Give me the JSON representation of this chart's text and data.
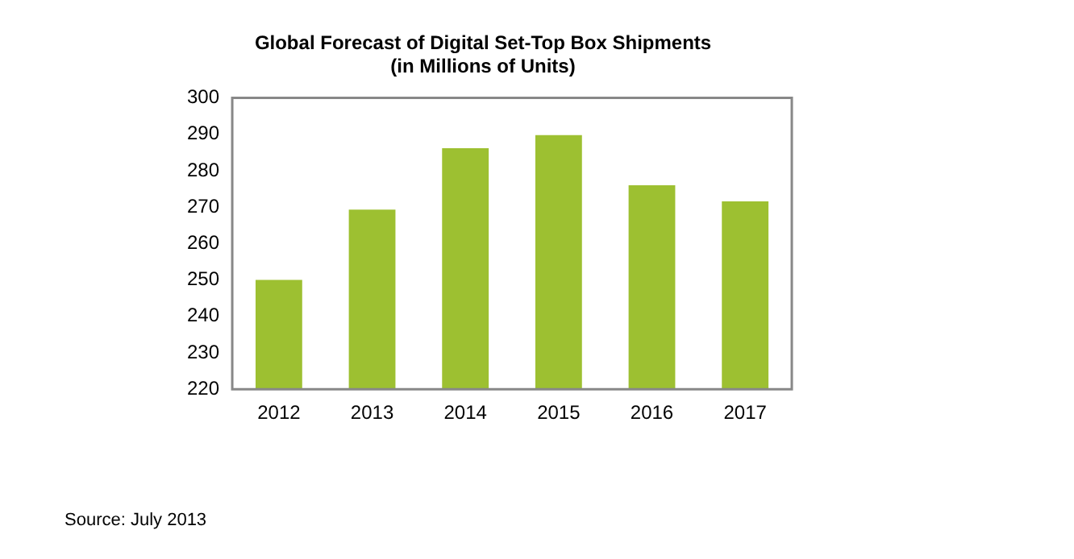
{
  "chart_data": {
    "type": "bar",
    "title": "Global Forecast of Digital Set-Top Box Shipments",
    "subtitle": "(in Millions of Units)",
    "categories": [
      "2012",
      "2013",
      "2014",
      "2015",
      "2016",
      "2017"
    ],
    "values": [
      250,
      269.3,
      286.2,
      289.8,
      276,
      271.6
    ],
    "color": "#9dc031",
    "ylim": [
      220,
      300
    ],
    "yticks": [
      220,
      230,
      240,
      250,
      260,
      270,
      280,
      290,
      300
    ],
    "grid": false,
    "legend": false,
    "annotations": [
      "Source: July 2013"
    ]
  }
}
